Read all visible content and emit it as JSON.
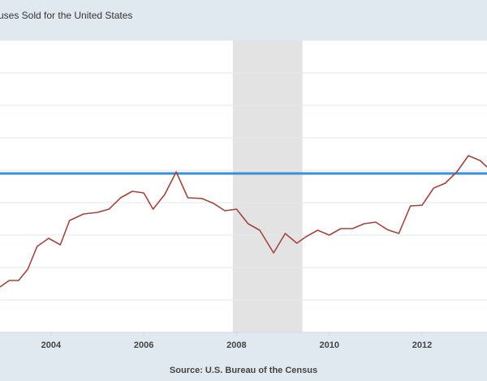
{
  "title": "uses Sold for the United States",
  "source": "Source: U.S. Bureau of the Census",
  "chart_data": {
    "type": "line",
    "title": "uses Sold for the United States",
    "xlabel": "",
    "ylabel": "",
    "grid": "horizontal",
    "x_tick_labels": [
      "2004",
      "2006",
      "2008",
      "2010",
      "2012"
    ],
    "xlim": [
      2002.9,
      2013.4
    ],
    "ylim": [
      0,
      9
    ],
    "y_gridlines": [
      1,
      2,
      3,
      4,
      5,
      6,
      7,
      8
    ],
    "recession_band": {
      "start": 2007.92,
      "end": 2009.42,
      "color": "#e3e3e3"
    },
    "reference_line": {
      "value": 4.9,
      "color": "#3a8fd6"
    },
    "series": [
      {
        "color": "#a1453e",
        "x": [
          2002.9,
          2003.1,
          2003.3,
          2003.5,
          2003.7,
          2003.95,
          2004.2,
          2004.4,
          2004.7,
          2005.0,
          2005.25,
          2005.5,
          2005.75,
          2006.0,
          2006.2,
          2006.45,
          2006.7,
          2006.95,
          2007.25,
          2007.5,
          2007.75,
          2008.0,
          2008.25,
          2008.5,
          2008.8,
          2009.05,
          2009.3,
          2009.5,
          2009.75,
          2010.0,
          2010.25,
          2010.5,
          2010.75,
          2011.0,
          2011.25,
          2011.5,
          2011.75,
          2012.0,
          2012.25,
          2012.5,
          2012.75,
          2013.0,
          2013.25,
          2013.4
        ],
        "y": [
          1.4,
          1.6,
          1.6,
          1.95,
          2.65,
          2.9,
          2.7,
          3.45,
          3.65,
          3.7,
          3.8,
          4.15,
          4.35,
          4.3,
          3.8,
          4.25,
          4.95,
          4.15,
          4.13,
          3.98,
          3.75,
          3.8,
          3.35,
          3.15,
          2.45,
          3.05,
          2.75,
          2.95,
          3.15,
          3.0,
          3.2,
          3.2,
          3.35,
          3.4,
          3.17,
          3.05,
          3.9,
          3.92,
          4.45,
          4.6,
          4.95,
          5.45,
          5.3,
          5.1
        ]
      }
    ]
  }
}
